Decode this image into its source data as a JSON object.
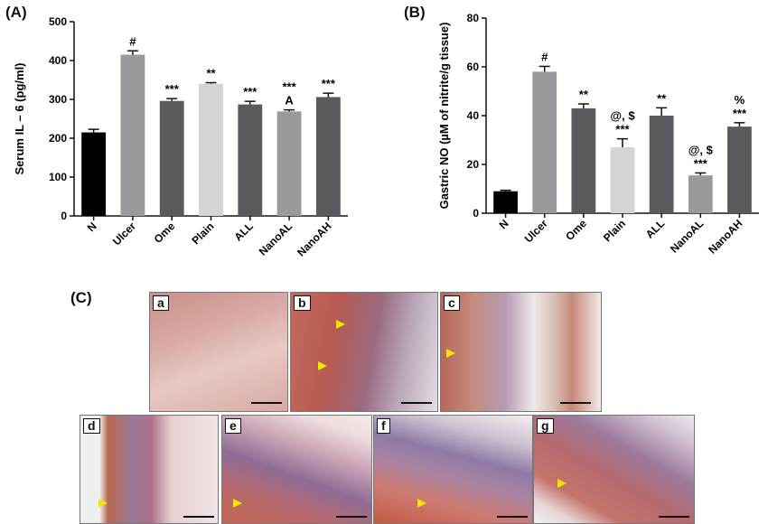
{
  "panels": {
    "a_label": "(A)",
    "b_label": "(B)",
    "c_label": "(C)"
  },
  "chart_data": [
    {
      "type": "bar",
      "ylabel": "Serum IL – 6 (pg/ml)",
      "ylim": [
        0,
        500
      ],
      "yticks": [
        0,
        100,
        200,
        300,
        400,
        500
      ],
      "categories": [
        "N",
        "Ulcer",
        "Ome",
        "Plain",
        "ALL",
        "NanoAL",
        "NanoAH"
      ],
      "values": [
        215,
        415,
        296,
        340,
        287,
        269,
        306
      ],
      "errors": [
        8,
        10,
        6,
        3,
        8,
        4,
        10
      ],
      "colors": [
        "#000000",
        "#9a9a9e",
        "#5a5a5e",
        "#d4d4d4",
        "#5a5a5e",
        "#9a9a9e",
        "#5a5a5e"
      ],
      "annotations": [
        "",
        "#",
        "***",
        "**",
        "***",
        "***\nA",
        "***"
      ],
      "grid": false
    },
    {
      "type": "bar",
      "ylabel": "Gastric NO (µM of nitrite/g tissue)",
      "ylim": [
        0,
        80
      ],
      "yticks": [
        0,
        20,
        40,
        60,
        80
      ],
      "categories": [
        "N",
        "Ulcer",
        "Ome",
        "Plain",
        "ALL",
        "NanoAL",
        "NanoAH"
      ],
      "values": [
        9,
        58,
        43,
        27,
        40,
        15.5,
        35.5
      ],
      "errors": [
        0.4,
        2.2,
        1.8,
        3.5,
        3.2,
        1,
        1.6
      ],
      "colors": [
        "#000000",
        "#9a9a9e",
        "#5a5a5e",
        "#d4d4d4",
        "#5a5a5e",
        "#9a9a9e",
        "#5a5a5e"
      ],
      "annotations": [
        "",
        "#",
        "**",
        "@, $\n***",
        "**",
        "@, $\n***",
        "%\n***"
      ],
      "grid": false
    }
  ],
  "micrographs": [
    {
      "letter": "a",
      "arrows": 0
    },
    {
      "letter": "b",
      "arrows": 2
    },
    {
      "letter": "c",
      "arrows": 1
    },
    {
      "letter": "d",
      "arrows": 1
    },
    {
      "letter": "e",
      "arrows": 1
    },
    {
      "letter": "f",
      "arrows": 1
    },
    {
      "letter": "g",
      "arrows": 1
    }
  ]
}
